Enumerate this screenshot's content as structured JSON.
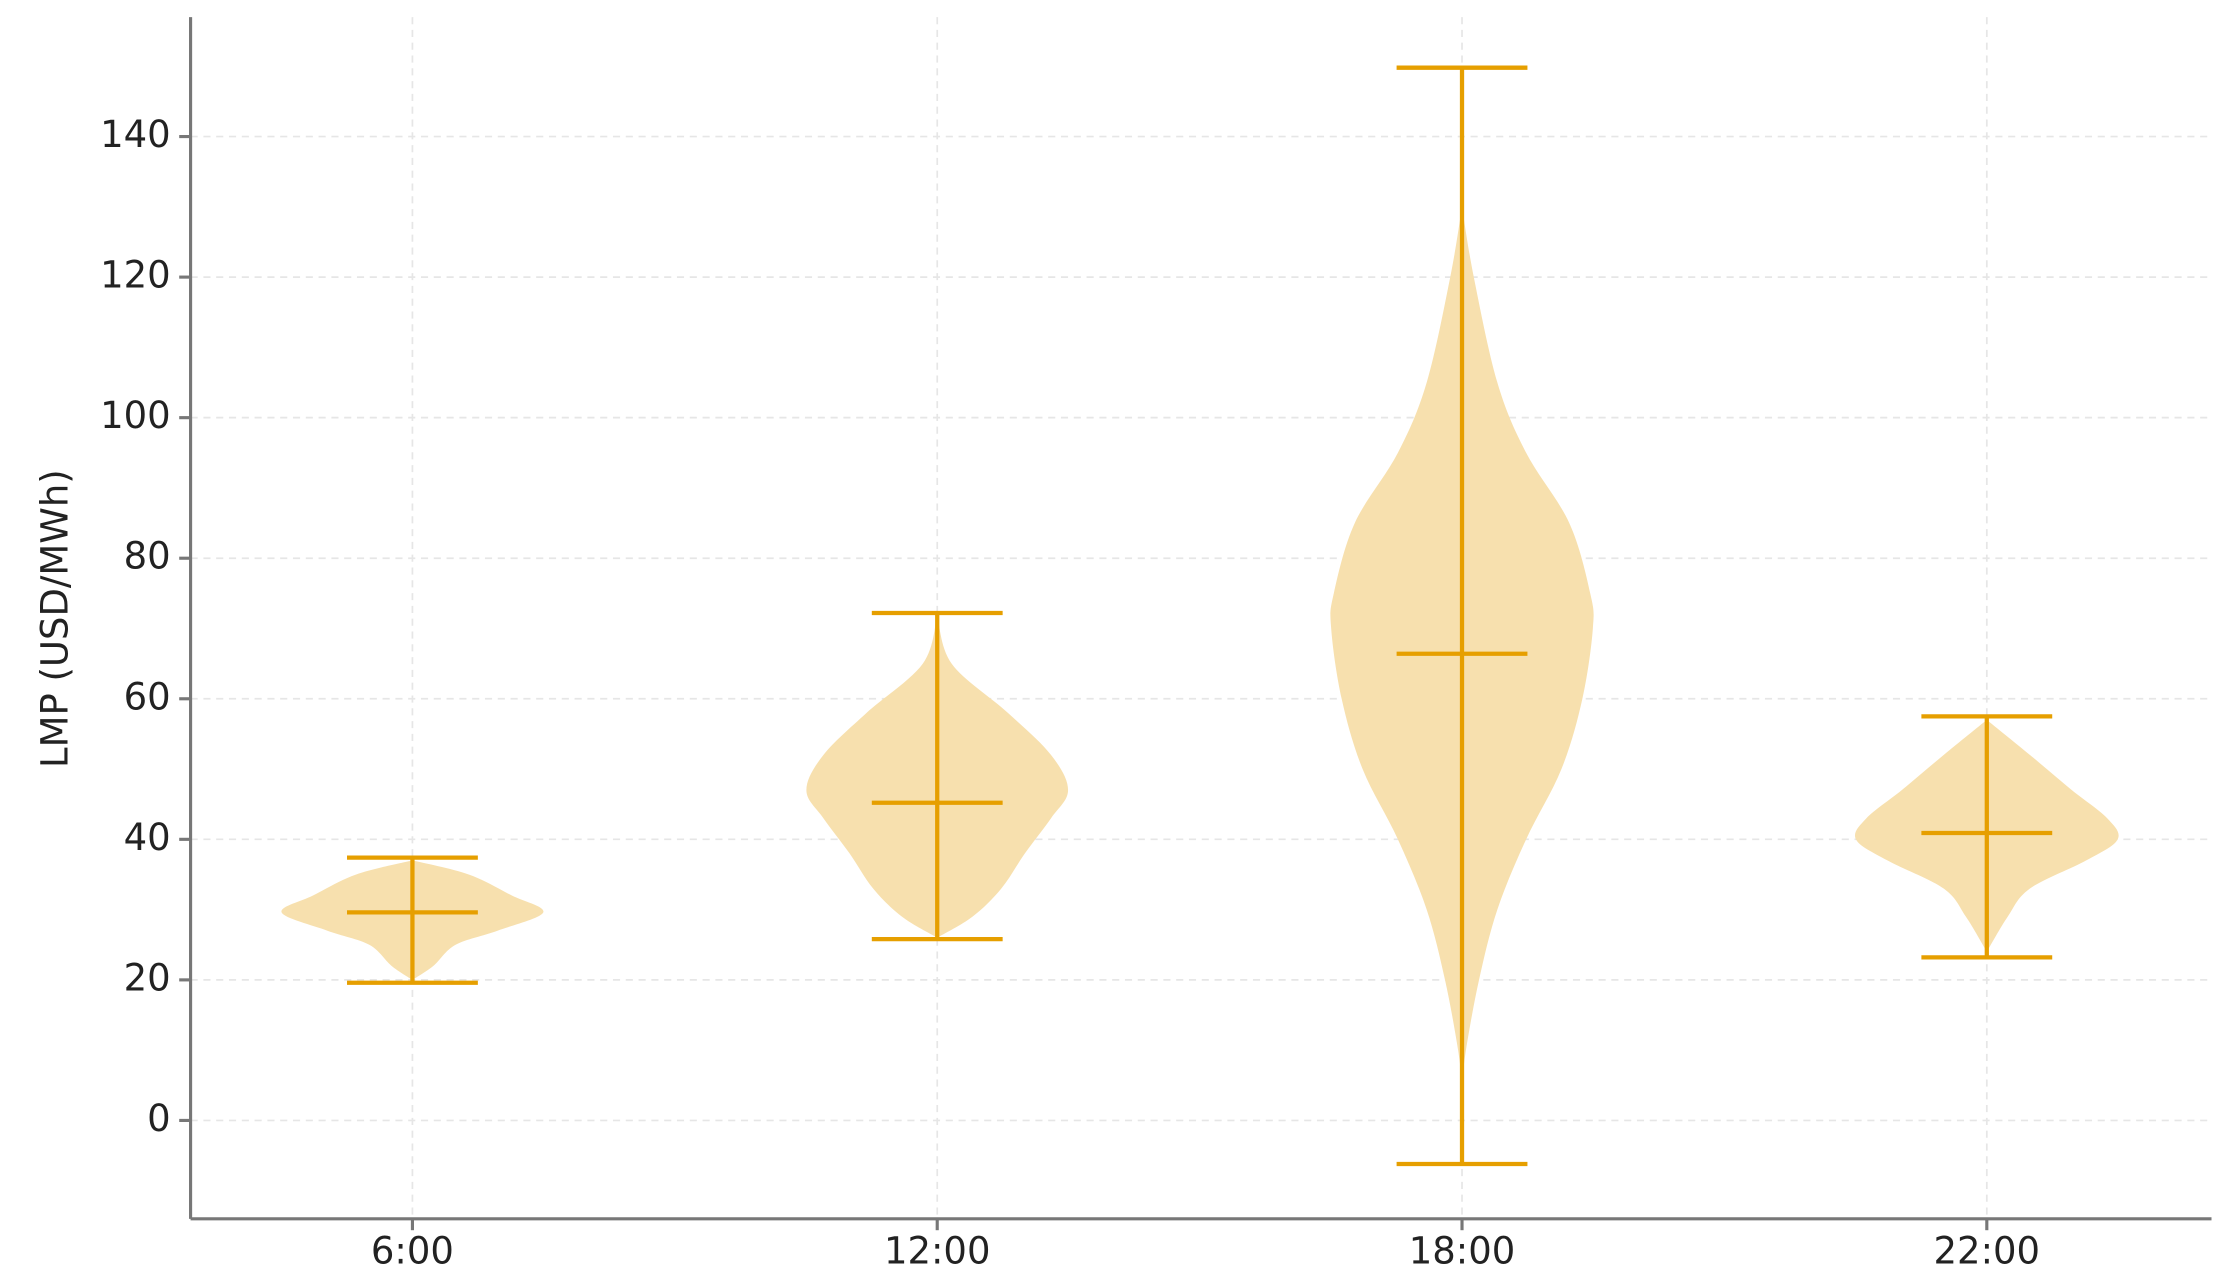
{
  "chart_data": {
    "type": "violin",
    "y_label": "LMP (USD/MWh)",
    "categories": [
      "6:00",
      "12:00",
      "18:00",
      "22:00"
    ],
    "fill_color": "#f7e0ae",
    "line_color": "#e69f00",
    "ylim": [
      -14,
      157
    ],
    "yticks": [
      0,
      20,
      40,
      60,
      80,
      100,
      120,
      140
    ],
    "grid": true,
    "violins": [
      {
        "min": 19.6,
        "max": 37.4,
        "median": 29.6,
        "kde_y": [
          20,
          22,
          25,
          27,
          29.6,
          32,
          35,
          37
        ],
        "kde_width": [
          0,
          0.16,
          0.33,
          0.65,
          1,
          0.76,
          0.43,
          0
        ]
      },
      {
        "min": 25.8,
        "max": 72.2,
        "median": 45.2,
        "kde_y": [
          26,
          29,
          33,
          38,
          43,
          47,
          52,
          58,
          65,
          72
        ],
        "kde_width": [
          0,
          0.27,
          0.49,
          0.67,
          0.87,
          1,
          0.87,
          0.54,
          0.11,
          0
        ]
      },
      {
        "min": -6.2,
        "max": 149.8,
        "median": 66.4,
        "kde_y": [
          5,
          10,
          20,
          30,
          40,
          50,
          60,
          70,
          75,
          85,
          95,
          105,
          120,
          130
        ],
        "kde_width": [
          0,
          0.03,
          0.13,
          0.27,
          0.49,
          0.76,
          0.92,
          1,
          0.98,
          0.82,
          0.49,
          0.27,
          0.09,
          0
        ]
      },
      {
        "min": 23.2,
        "max": 57.5,
        "median": 40.9,
        "kde_y": [
          24,
          29,
          33,
          37,
          40,
          43,
          47,
          52,
          57
        ],
        "kde_width": [
          0,
          0.16,
          0.33,
          0.76,
          1,
          0.92,
          0.65,
          0.33,
          0
        ]
      }
    ]
  }
}
